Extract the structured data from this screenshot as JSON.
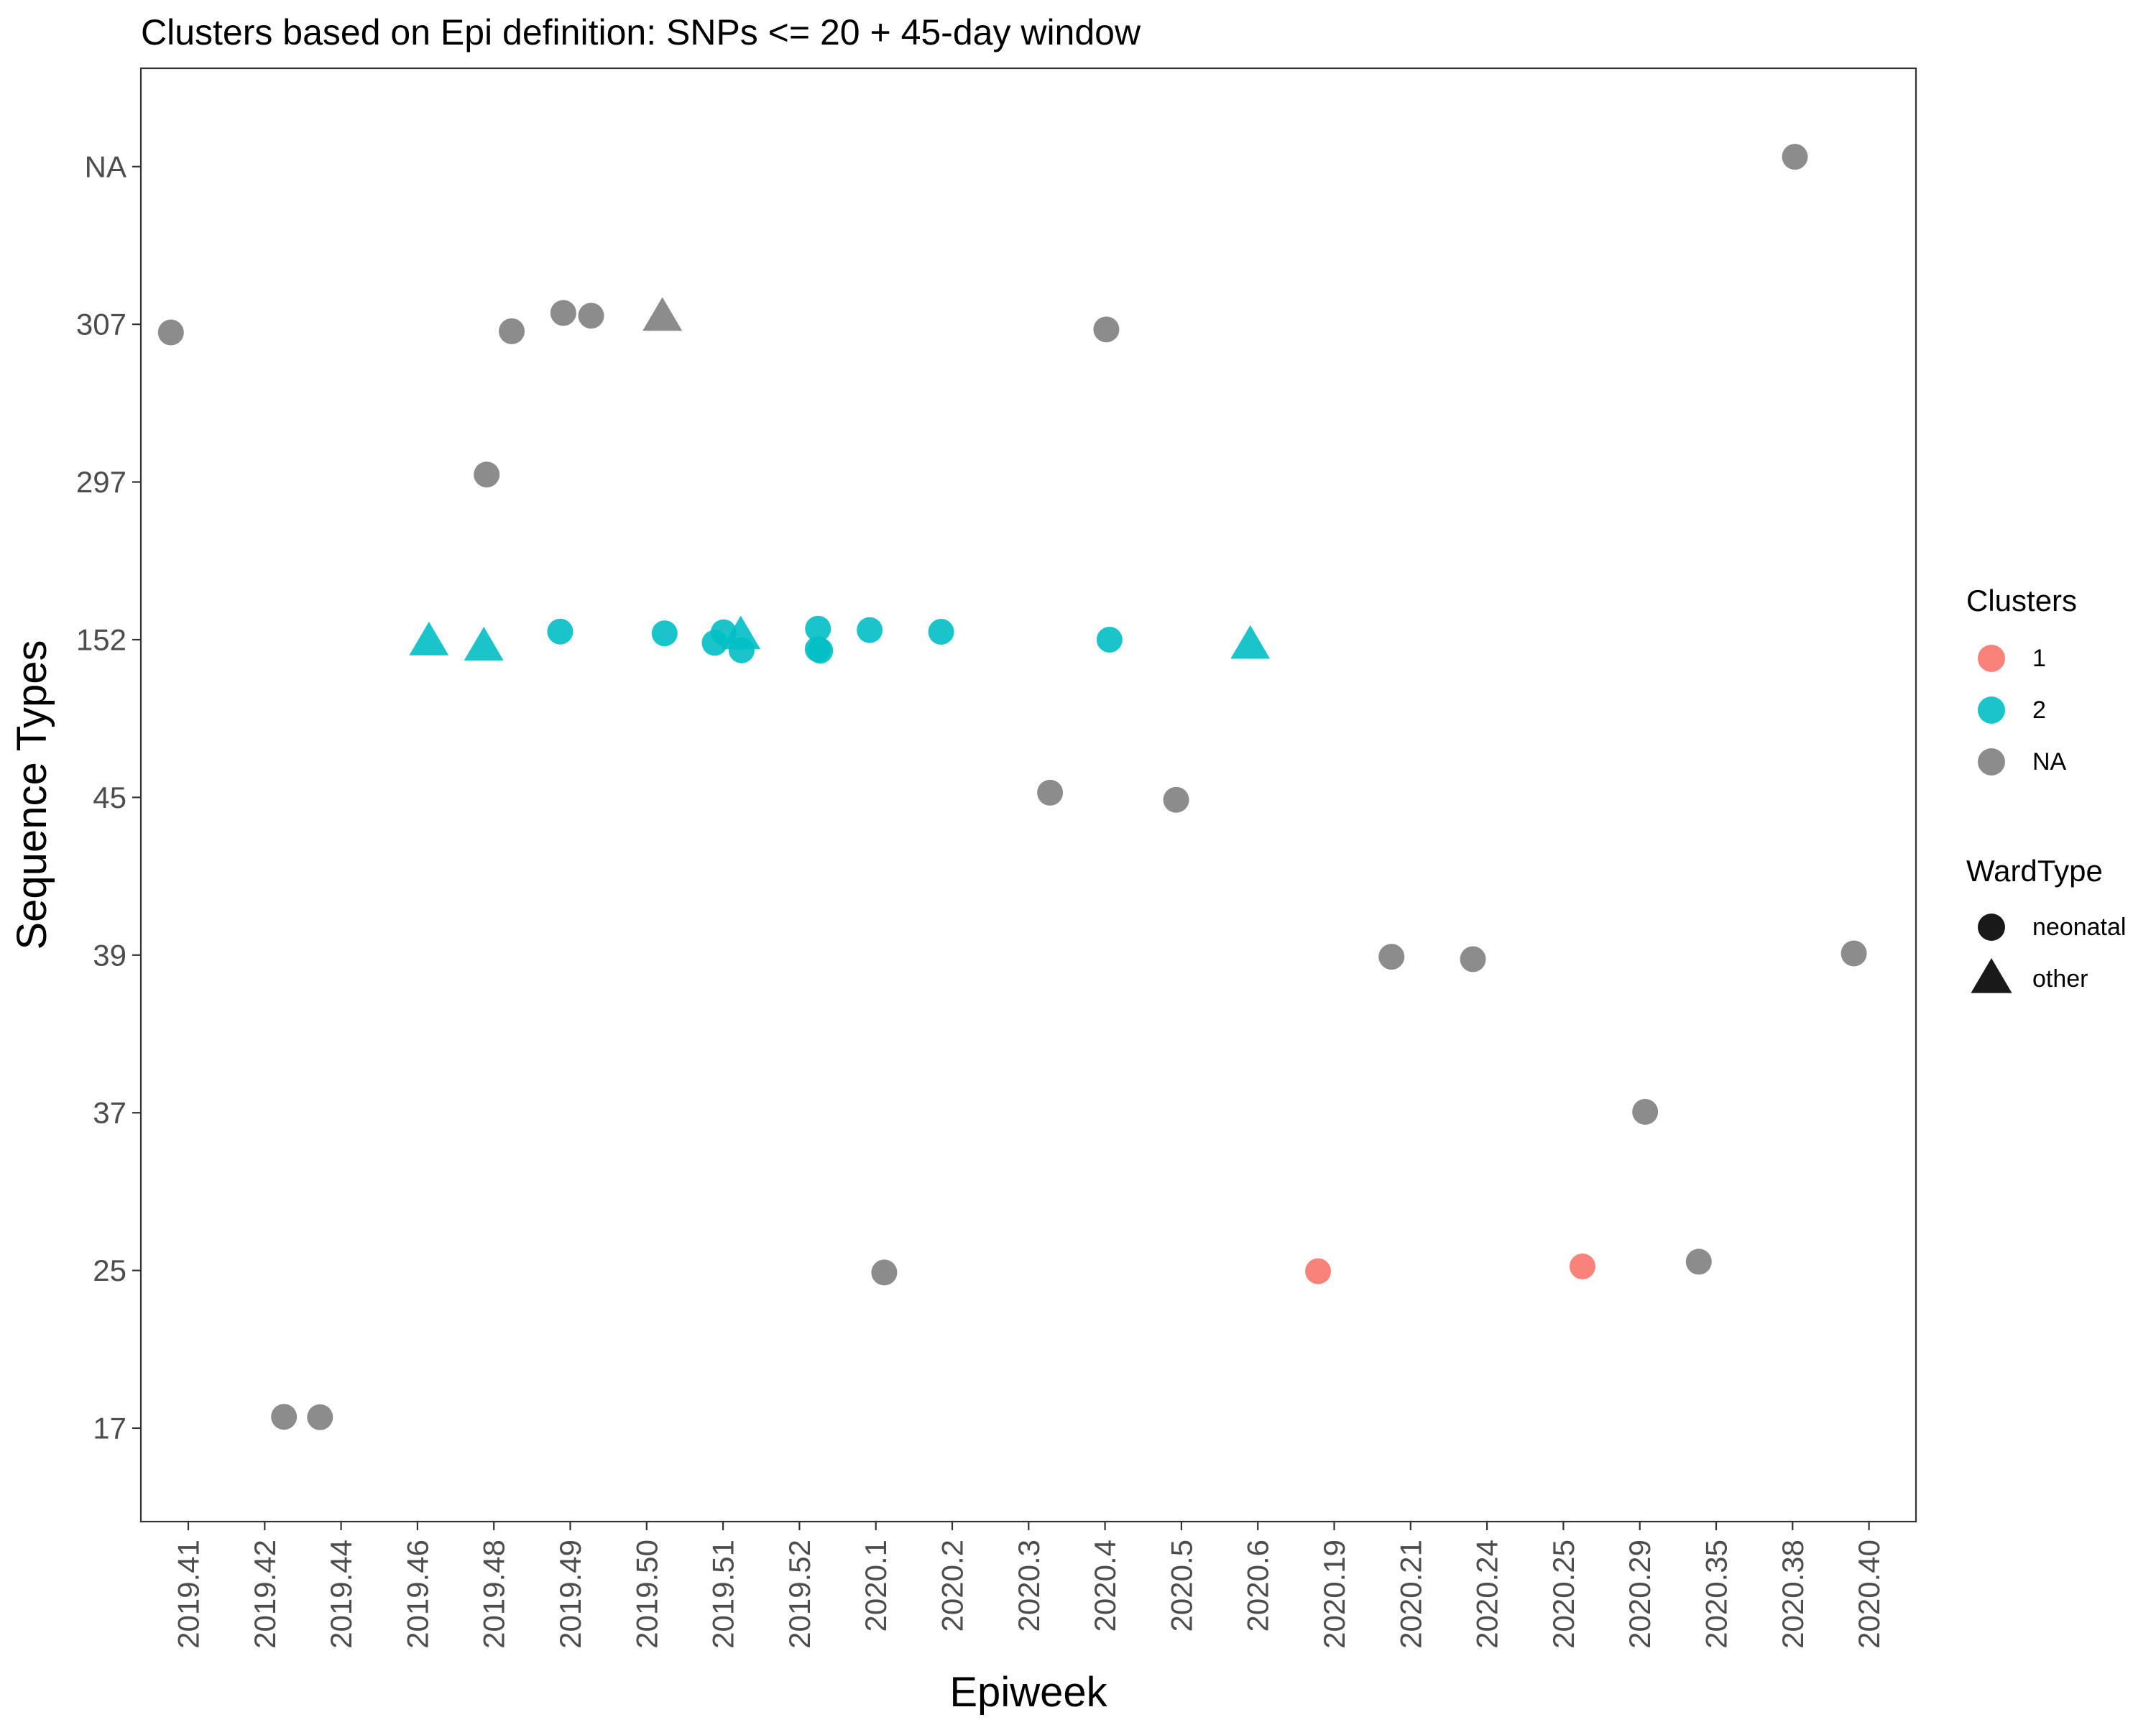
{
  "chart_data": {
    "type": "scatter",
    "title": "Clusters based on Epi definition: SNPs <= 20 + 45-day window",
    "xlabel": "Epiweek",
    "ylabel": "Sequence Types",
    "x_categories": [
      "2019.41",
      "2019.42",
      "2019.44",
      "2019.46",
      "2019.48",
      "2019.49",
      "2019.50",
      "2019.51",
      "2019.52",
      "2020.1",
      "2020.2",
      "2020.3",
      "2020.4",
      "2020.5",
      "2020.6",
      "2020.19",
      "2020.21",
      "2020.24",
      "2020.25",
      "2020.29",
      "2020.35",
      "2020.38",
      "2020.40"
    ],
    "y_categories": [
      "17",
      "25",
      "37",
      "39",
      "45",
      "152",
      "297",
      "307",
      "NA"
    ],
    "grid": false,
    "legend_placement": "right",
    "legends": {
      "clusters": {
        "title": "Clusters",
        "items": [
          {
            "label": "1",
            "color": "#F8766D"
          },
          {
            "label": "2",
            "color": "#00BFC4"
          },
          {
            "label": "NA",
            "color": "#7F7F7F"
          }
        ]
      },
      "wardtype": {
        "title": "WardType",
        "items": [
          {
            "label": "neonatal",
            "shape": "circle"
          },
          {
            "label": "other",
            "shape": "triangle"
          }
        ]
      }
    },
    "points": [
      {
        "x": "2019.41",
        "y": "307",
        "cluster": "NA",
        "ward": "neonatal"
      },
      {
        "x": "2019.42",
        "y": "17",
        "cluster": "NA",
        "ward": "neonatal"
      },
      {
        "x": "2019.44",
        "y": "17",
        "cluster": "NA",
        "ward": "neonatal"
      },
      {
        "x": "2019.46",
        "y": "152",
        "cluster": "2",
        "ward": "other"
      },
      {
        "x": "2019.48",
        "y": "307",
        "cluster": "NA",
        "ward": "neonatal"
      },
      {
        "x": "2019.48",
        "y": "297",
        "cluster": "NA",
        "ward": "neonatal"
      },
      {
        "x": "2019.48",
        "y": "152",
        "cluster": "2",
        "ward": "other"
      },
      {
        "x": "2019.49",
        "y": "307",
        "cluster": "NA",
        "ward": "neonatal"
      },
      {
        "x": "2019.49",
        "y": "307",
        "cluster": "NA",
        "ward": "neonatal"
      },
      {
        "x": "2019.49",
        "y": "152",
        "cluster": "2",
        "ward": "neonatal"
      },
      {
        "x": "2019.50",
        "y": "307",
        "cluster": "NA",
        "ward": "other"
      },
      {
        "x": "2019.50",
        "y": "152",
        "cluster": "2",
        "ward": "neonatal"
      },
      {
        "x": "2019.51",
        "y": "152",
        "cluster": "2",
        "ward": "neonatal"
      },
      {
        "x": "2019.51",
        "y": "152",
        "cluster": "2",
        "ward": "neonatal"
      },
      {
        "x": "2019.51",
        "y": "152",
        "cluster": "2",
        "ward": "neonatal"
      },
      {
        "x": "2019.51",
        "y": "152",
        "cluster": "2",
        "ward": "other"
      },
      {
        "x": "2019.52",
        "y": "152",
        "cluster": "2",
        "ward": "neonatal"
      },
      {
        "x": "2019.52",
        "y": "152",
        "cluster": "2",
        "ward": "neonatal"
      },
      {
        "x": "2019.52",
        "y": "152",
        "cluster": "2",
        "ward": "neonatal"
      },
      {
        "x": "2020.1",
        "y": "152",
        "cluster": "2",
        "ward": "neonatal"
      },
      {
        "x": "2020.1",
        "y": "25",
        "cluster": "NA",
        "ward": "neonatal"
      },
      {
        "x": "2020.2",
        "y": "152",
        "cluster": "2",
        "ward": "neonatal"
      },
      {
        "x": "2020.3",
        "y": "45",
        "cluster": "NA",
        "ward": "neonatal"
      },
      {
        "x": "2020.4",
        "y": "307",
        "cluster": "NA",
        "ward": "neonatal"
      },
      {
        "x": "2020.4",
        "y": "152",
        "cluster": "2",
        "ward": "neonatal"
      },
      {
        "x": "2020.5",
        "y": "45",
        "cluster": "NA",
        "ward": "neonatal"
      },
      {
        "x": "2020.6",
        "y": "152",
        "cluster": "2",
        "ward": "other"
      },
      {
        "x": "2020.19",
        "y": "25",
        "cluster": "1",
        "ward": "neonatal"
      },
      {
        "x": "2020.21",
        "y": "39",
        "cluster": "NA",
        "ward": "neonatal"
      },
      {
        "x": "2020.24",
        "y": "39",
        "cluster": "NA",
        "ward": "neonatal"
      },
      {
        "x": "2020.25",
        "y": "25",
        "cluster": "1",
        "ward": "neonatal"
      },
      {
        "x": "2020.29",
        "y": "37",
        "cluster": "NA",
        "ward": "neonatal"
      },
      {
        "x": "2020.35",
        "y": "25",
        "cluster": "NA",
        "ward": "neonatal"
      },
      {
        "x": "2020.38",
        "y": "NA",
        "cluster": "NA",
        "ward": "neonatal"
      },
      {
        "x": "2020.40",
        "y": "39",
        "cluster": "NA",
        "ward": "neonatal"
      }
    ]
  }
}
